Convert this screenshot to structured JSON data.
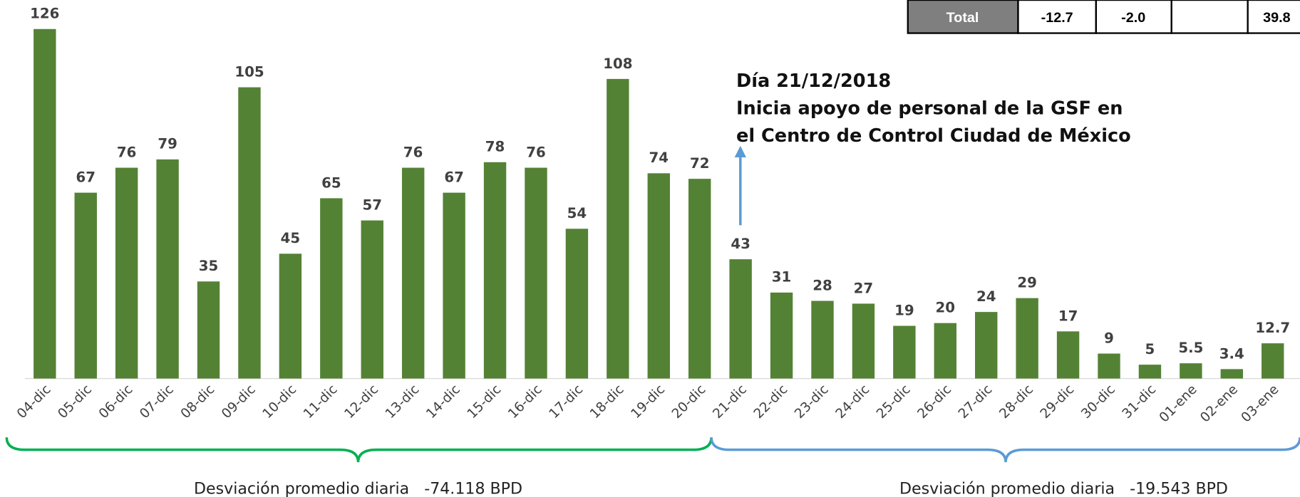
{
  "chart_data": {
    "type": "bar",
    "categories": [
      "04-dic",
      "05-dic",
      "06-dic",
      "07-dic",
      "08-dic",
      "09-dic",
      "10-dic",
      "11-dic",
      "12-dic",
      "13-dic",
      "14-dic",
      "15-dic",
      "16-dic",
      "17-dic",
      "18-dic",
      "19-dic",
      "20-dic",
      "21-dic",
      "22-dic",
      "23-dic",
      "24-dic",
      "25-dic",
      "26-dic",
      "27-dic",
      "28-dic",
      "29-dic",
      "30-dic",
      "31-dic",
      "01-ene",
      "02-ene",
      "03-ene"
    ],
    "values": [
      126,
      67,
      76,
      79,
      35,
      105,
      45,
      65,
      57,
      76,
      67,
      78,
      76,
      54,
      108,
      74,
      72,
      43,
      31,
      28,
      27,
      19,
      20,
      24,
      29,
      17,
      9,
      5,
      5.5,
      3.4,
      12.7
    ],
    "color": "#548235",
    "annotation": [
      "Día 21/12/2018",
      "Inicia apoyo de personal de la GSF en",
      "el Centro de Control Ciudad de México"
    ],
    "brace_labels": [
      "Desviación promedio diaria   -74.118 BPD",
      "Desviación promedio diaria   -19.543 BPD"
    ]
  },
  "table": {
    "cells": [
      "Total",
      "-12.7",
      "-2.0",
      "39.8"
    ]
  }
}
